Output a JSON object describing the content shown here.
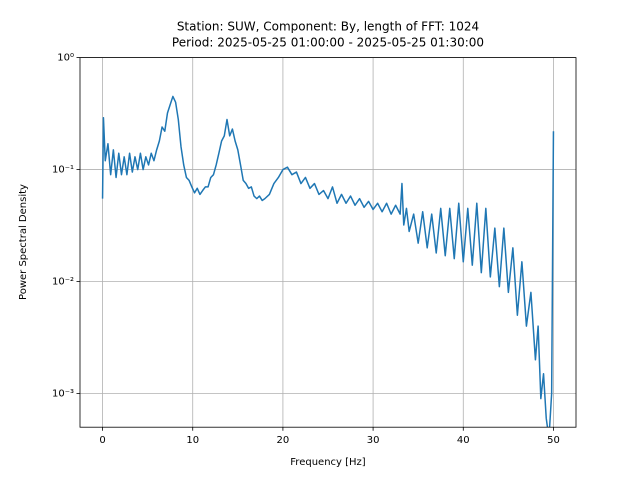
{
  "chart_data": {
    "type": "line",
    "title": "Station: SUW, Component: By, length of FFT: 1024",
    "subtitle": "Period: 2025-05-25 01:00:00 - 2025-05-25 01:30:00",
    "xlabel": "Frequency [Hz]",
    "ylabel": "Power Spectral Density",
    "xlim": [
      -2.5,
      52.5
    ],
    "xticks": [
      0,
      10,
      20,
      30,
      40,
      50
    ],
    "ylim": [
      0.0005,
      1
    ],
    "yscale": "log",
    "yticks": [
      {
        "value": 0.001,
        "label": "10⁻³"
      },
      {
        "value": 0.01,
        "label": "10⁻²"
      },
      {
        "value": 0.1,
        "label": "10⁻¹"
      },
      {
        "value": 1,
        "label": "10⁰"
      }
    ],
    "grid": true,
    "series": [
      {
        "color": "#1f77b4",
        "x": [
          0,
          0.1,
          0.3,
          0.6,
          0.9,
          1.2,
          1.5,
          1.8,
          2.1,
          2.4,
          2.7,
          3.0,
          3.3,
          3.6,
          3.9,
          4.2,
          4.5,
          4.8,
          5.1,
          5.4,
          5.7,
          6.0,
          6.3,
          6.6,
          6.9,
          7.2,
          7.5,
          7.8,
          8.1,
          8.4,
          8.7,
          9.0,
          9.3,
          9.6,
          9.9,
          10.2,
          10.5,
          10.8,
          11.1,
          11.4,
          11.7,
          12.0,
          12.3,
          12.6,
          12.9,
          13.2,
          13.5,
          13.8,
          14.1,
          14.4,
          14.7,
          15.0,
          15.3,
          15.6,
          15.9,
          16.2,
          16.5,
          16.8,
          17.1,
          17.4,
          17.7,
          18.0,
          18.5,
          19.0,
          19.5,
          20.0,
          20.5,
          21.0,
          21.5,
          22.0,
          22.5,
          23.0,
          23.5,
          24.0,
          24.5,
          25.0,
          25.5,
          26.0,
          26.5,
          27.0,
          27.5,
          28.0,
          28.5,
          29.0,
          29.5,
          30.0,
          30.5,
          31.0,
          31.5,
          32.0,
          32.5,
          33.0,
          33.2,
          33.4,
          33.7,
          34.0,
          34.5,
          35.0,
          35.5,
          36.0,
          36.5,
          37.0,
          37.5,
          38.0,
          38.5,
          39.0,
          39.5,
          40.0,
          40.5,
          41.0,
          41.5,
          42.0,
          42.5,
          43.0,
          43.5,
          44.0,
          44.5,
          45.0,
          45.5,
          46.0,
          46.5,
          47.0,
          47.5,
          48.0,
          48.3,
          48.6,
          48.9,
          49.2,
          49.5,
          49.8,
          50.0
        ],
        "values": [
          0.055,
          0.29,
          0.12,
          0.17,
          0.09,
          0.15,
          0.085,
          0.14,
          0.09,
          0.13,
          0.09,
          0.14,
          0.095,
          0.13,
          0.1,
          0.14,
          0.1,
          0.13,
          0.11,
          0.14,
          0.12,
          0.15,
          0.18,
          0.24,
          0.22,
          0.32,
          0.38,
          0.45,
          0.4,
          0.28,
          0.16,
          0.11,
          0.085,
          0.08,
          0.07,
          0.062,
          0.068,
          0.06,
          0.065,
          0.07,
          0.07,
          0.085,
          0.09,
          0.11,
          0.14,
          0.18,
          0.2,
          0.28,
          0.2,
          0.23,
          0.18,
          0.15,
          0.11,
          0.08,
          0.075,
          0.068,
          0.07,
          0.058,
          0.055,
          0.058,
          0.053,
          0.055,
          0.06,
          0.075,
          0.085,
          0.1,
          0.105,
          0.09,
          0.095,
          0.075,
          0.085,
          0.068,
          0.075,
          0.06,
          0.065,
          0.055,
          0.07,
          0.05,
          0.06,
          0.05,
          0.058,
          0.048,
          0.055,
          0.046,
          0.052,
          0.044,
          0.05,
          0.042,
          0.05,
          0.04,
          0.048,
          0.04,
          0.075,
          0.032,
          0.045,
          0.028,
          0.04,
          0.022,
          0.042,
          0.02,
          0.04,
          0.018,
          0.045,
          0.017,
          0.045,
          0.016,
          0.05,
          0.015,
          0.045,
          0.014,
          0.05,
          0.012,
          0.045,
          0.011,
          0.03,
          0.009,
          0.03,
          0.008,
          0.02,
          0.005,
          0.015,
          0.004,
          0.008,
          0.002,
          0.004,
          0.0009,
          0.0015,
          0.0006,
          0.0004,
          0.001,
          0.22
        ]
      }
    ]
  }
}
